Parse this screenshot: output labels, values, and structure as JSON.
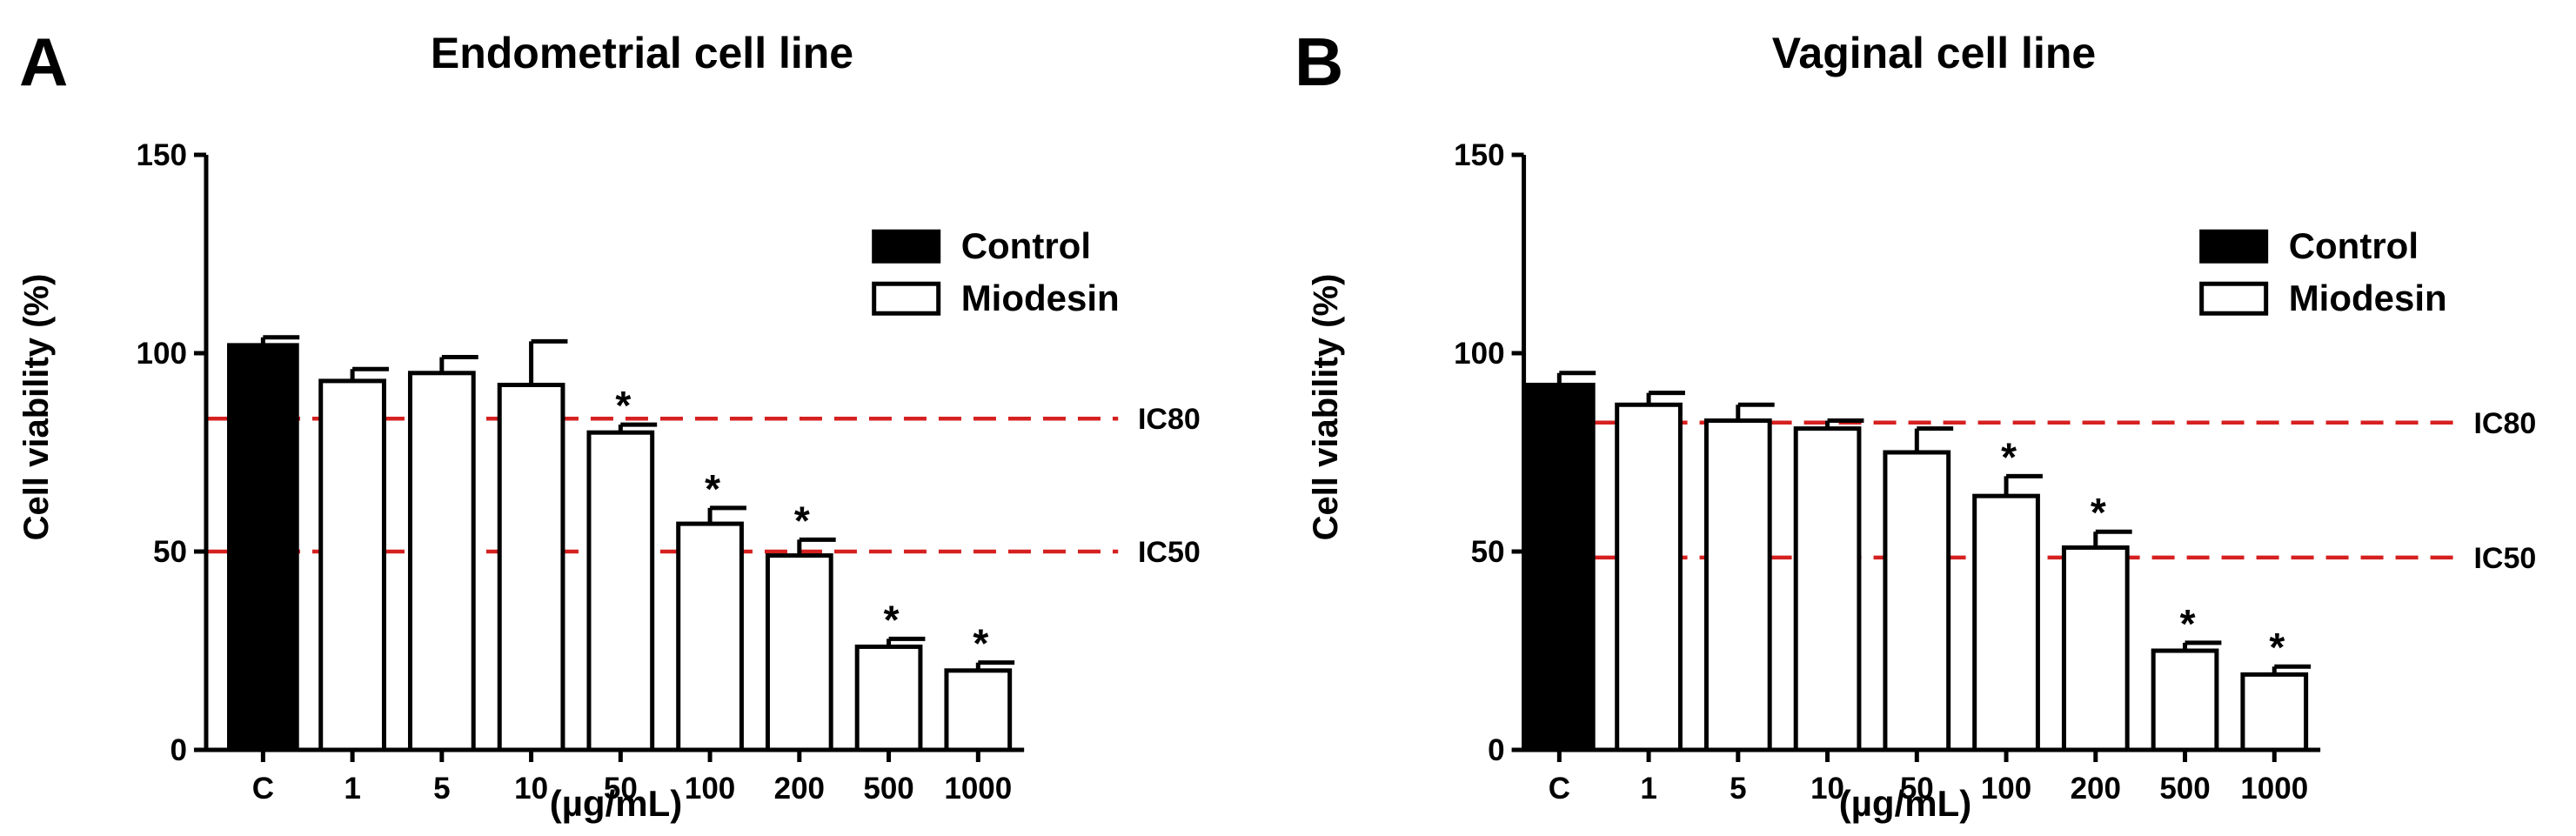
{
  "chart_data": [
    {
      "type": "bar",
      "panel": "A",
      "title": "Endometrial cell line",
      "xlabel": "(µg/mL)",
      "ylabel": "Cell viability (%)",
      "ylim": [
        0,
        150
      ],
      "yticks": [
        0,
        50,
        100,
        150
      ],
      "categories": [
        "C",
        "1",
        "5",
        "10",
        "50",
        "100",
        "200",
        "500",
        "1000"
      ],
      "groups": [
        "Control",
        "Miodesin",
        "Miodesin",
        "Miodesin",
        "Miodesin",
        "Miodesin",
        "Miodesin",
        "Miodesin",
        "Miodesin"
      ],
      "values": [
        102,
        93,
        95,
        92,
        80,
        57,
        49,
        26,
        20
      ],
      "errors": [
        2,
        3,
        4,
        11,
        2,
        4,
        4,
        2,
        2
      ],
      "significant": [
        false,
        false,
        false,
        false,
        true,
        true,
        true,
        true,
        true
      ],
      "significance_marker": "*",
      "legend": [
        {
          "label": "Control",
          "color": "#000000"
        },
        {
          "label": "Miodesin",
          "color": "#ffffff"
        }
      ],
      "reference_lines": [
        {
          "label": "IC80",
          "value": 83.5,
          "color": "#d62020"
        },
        {
          "label": "IC50",
          "value": 50,
          "color": "#d62020"
        }
      ]
    },
    {
      "type": "bar",
      "panel": "B",
      "title": "Vaginal cell line",
      "xlabel": "(µg/mL)",
      "ylabel": "Cell viability (%)",
      "ylim": [
        0,
        150
      ],
      "yticks": [
        0,
        50,
        100,
        150
      ],
      "categories": [
        "C",
        "1",
        "5",
        "10",
        "50",
        "100",
        "200",
        "500",
        "1000"
      ],
      "groups": [
        "Control",
        "Miodesin",
        "Miodesin",
        "Miodesin",
        "Miodesin",
        "Miodesin",
        "Miodesin",
        "Miodesin",
        "Miodesin"
      ],
      "values": [
        92,
        87,
        83,
        81,
        75,
        64,
        51,
        25,
        19
      ],
      "errors": [
        3,
        3,
        4,
        2,
        6,
        5,
        4,
        2,
        2
      ],
      "significant": [
        false,
        false,
        false,
        false,
        false,
        true,
        true,
        true,
        true
      ],
      "significance_marker": "*",
      "legend": [
        {
          "label": "Control",
          "color": "#000000"
        },
        {
          "label": "Miodesin",
          "color": "#ffffff"
        }
      ],
      "reference_lines": [
        {
          "label": "IC80",
          "value": 82.5,
          "color": "#d62020"
        },
        {
          "label": "IC50",
          "value": 48.5,
          "color": "#d62020"
        }
      ]
    }
  ]
}
